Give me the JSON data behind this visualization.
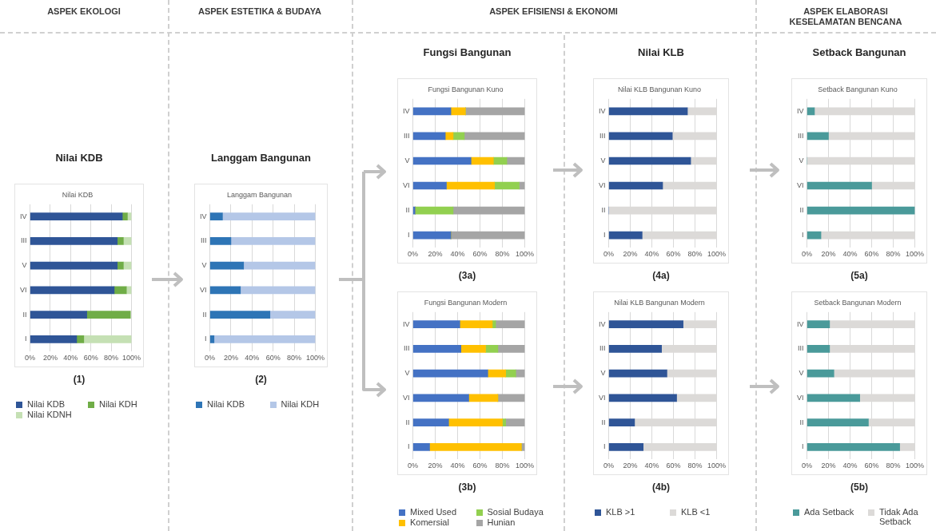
{
  "chart_data": [
    {
      "type": "other",
      "title": "ASPEK EKOLOGI"
    },
    {
      "type": "other",
      "title": "ASPEK ESTETIKA & BUDAYA"
    },
    {
      "type": "other",
      "title": "ASPEK EFISIENSI & EKONOMI"
    },
    {
      "type": "other",
      "title": "ASPEK ELABORASI KESELAMATAN BENCANA"
    },
    {
      "type": "bar",
      "title": "Nilai KDB",
      "subtitle": "Nilai KDB",
      "annotations": [
        "(1)"
      ],
      "orientation": "horizontal",
      "stacked": true,
      "categories": [
        "IV",
        "III",
        "V",
        "VI",
        "II",
        "I"
      ],
      "xlim": [
        0,
        100
      ],
      "xticks": [
        {
          "value": 0,
          "label": "0%"
        },
        {
          "value": 20,
          "label": "20%"
        },
        {
          "value": 40,
          "label": "40%"
        },
        {
          "value": 60,
          "label": "60%"
        },
        {
          "value": 80,
          "label": "80%"
        },
        {
          "value": 100,
          "label": "100%"
        }
      ],
      "grid": "x",
      "legend": "bottom",
      "series": [
        {
          "name": "Nilai KDB",
          "color": "#2f5597",
          "values": [
            91,
            86,
            86,
            83,
            56,
            46
          ]
        },
        {
          "name": "Nilai KDH",
          "color": "#70ad47",
          "values": [
            5,
            6,
            6,
            12,
            43,
            7
          ]
        },
        {
          "name": "Nilai KDNH",
          "color": "#c5e0b4",
          "values": [
            4,
            8,
            8,
            5,
            null,
            47
          ]
        }
      ]
    },
    {
      "type": "bar",
      "title": "Langgam Bangunan",
      "subtitle": "Langgam Bangunan",
      "annotations": [
        "(2)"
      ],
      "orientation": "horizontal",
      "stacked": true,
      "categories": [
        "IV",
        "III",
        "V",
        "VI",
        "II",
        "I"
      ],
      "xlim": [
        0,
        100
      ],
      "xticks": [
        {
          "value": 0,
          "label": "0%"
        },
        {
          "value": 20,
          "label": "20%"
        },
        {
          "value": 40,
          "label": "40%"
        },
        {
          "value": 60,
          "label": "60%"
        },
        {
          "value": 80,
          "label": "80%"
        },
        {
          "value": 100,
          "label": "100%"
        }
      ],
      "grid": "x",
      "legend": "bottom",
      "series": [
        {
          "name": "Nilai KDB",
          "color": "#2e75b6",
          "values": [
            12,
            20,
            32,
            29,
            57,
            4
          ]
        },
        {
          "name": "Nilai KDH",
          "color": "#b4c7e7",
          "values": [
            88,
            80,
            68,
            71,
            43,
            96
          ]
        }
      ]
    },
    {
      "type": "bar",
      "title": "Fungsi Bangunan Kuno",
      "subtitle": "Fungsi Bangunan",
      "annotations": [
        "(3a)"
      ],
      "orientation": "horizontal",
      "stacked": true,
      "categories": [
        "IV",
        "III",
        "V",
        "VI",
        "II",
        "I"
      ],
      "xlim": [
        0,
        100
      ],
      "xticks": [
        {
          "value": 0,
          "label": "0%"
        },
        {
          "value": 20,
          "label": "20%"
        },
        {
          "value": 40,
          "label": "40%"
        },
        {
          "value": 60,
          "label": "60%"
        },
        {
          "value": 80,
          "label": "80%"
        },
        {
          "value": 100,
          "label": "100%"
        }
      ],
      "grid": "x",
      "series": [
        {
          "color": "#4472c4",
          "values": [
            34,
            29,
            52,
            30,
            2,
            34
          ]
        },
        {
          "color": "#ffc000",
          "values": [
            13,
            7,
            20,
            43,
            0,
            0
          ]
        },
        {
          "color": "#92d050",
          "values": [
            0,
            10,
            12,
            22,
            34,
            0
          ]
        },
        {
          "color": "#a5a5a5",
          "values": [
            53,
            54,
            16,
            5,
            64,
            66
          ]
        }
      ]
    },
    {
      "type": "bar",
      "title": "Fungsi Bangunan Modern",
      "annotations": [
        "(3b)"
      ],
      "orientation": "horizontal",
      "stacked": true,
      "categories": [
        "IV",
        "III",
        "V",
        "VI",
        "II",
        "I"
      ],
      "xlim": [
        0,
        100
      ],
      "xticks": [
        {
          "value": 0,
          "label": "0%"
        },
        {
          "value": 20,
          "label": "20%"
        },
        {
          "value": 40,
          "label": "40%"
        },
        {
          "value": 60,
          "label": "60%"
        },
        {
          "value": 80,
          "label": "80%"
        },
        {
          "value": 100,
          "label": "100%"
        }
      ],
      "grid": "x",
      "legend": "bottom",
      "series": [
        {
          "name": "Mixed Used",
          "color": "#4472c4",
          "values": [
            42,
            43,
            67,
            50,
            32,
            15
          ]
        },
        {
          "name": "Komersial",
          "color": "#ffc000",
          "values": [
            29,
            22,
            16,
            26,
            48,
            82
          ]
        },
        {
          "name": "Sosial Budaya",
          "color": "#92d050",
          "values": [
            3,
            11,
            9,
            0,
            3,
            0
          ]
        },
        {
          "name": "Hunian",
          "color": "#a5a5a5",
          "values": [
            26,
            24,
            8,
            24,
            17,
            3
          ]
        }
      ]
    },
    {
      "type": "bar",
      "title": "Nilai KLB Bangunan Kuno",
      "subtitle": "Nilai KLB",
      "annotations": [
        "(4a)"
      ],
      "orientation": "horizontal",
      "stacked": true,
      "categories": [
        "IV",
        "III",
        "V",
        "VI",
        "II",
        "I"
      ],
      "xlim": [
        0,
        100
      ],
      "xticks": [
        {
          "value": 0,
          "label": "0%"
        },
        {
          "value": 20,
          "label": "20%"
        },
        {
          "value": 40,
          "label": "40%"
        },
        {
          "value": 60,
          "label": "60%"
        },
        {
          "value": 80,
          "label": "80%"
        },
        {
          "value": 100,
          "label": "100%"
        }
      ],
      "grid": "x",
      "series": [
        {
          "color": "#2f5597",
          "values": [
            73,
            59,
            76,
            50,
            0,
            31
          ]
        },
        {
          "color": "#dcdad8",
          "values": [
            27,
            41,
            24,
            50,
            100,
            69
          ]
        }
      ]
    },
    {
      "type": "bar",
      "title": "Nilai KLB Bangunan Modern",
      "annotations": [
        "(4b)"
      ],
      "orientation": "horizontal",
      "stacked": true,
      "categories": [
        "IV",
        "III",
        "V",
        "VI",
        "II",
        "I"
      ],
      "xlim": [
        0,
        100
      ],
      "xticks": [
        {
          "value": 0,
          "label": "0%"
        },
        {
          "value": 20,
          "label": "20%"
        },
        {
          "value": 40,
          "label": "40%"
        },
        {
          "value": 60,
          "label": "60%"
        },
        {
          "value": 80,
          "label": "80%"
        },
        {
          "value": 100,
          "label": "100%"
        }
      ],
      "grid": "x",
      "legend": "bottom",
      "series": [
        {
          "name": "KLB >1",
          "color": "#2f5597",
          "values": [
            69,
            49,
            54,
            63,
            24,
            32
          ]
        },
        {
          "name": "KLB <1",
          "color": "#dcdad8",
          "values": [
            31,
            51,
            46,
            37,
            76,
            68
          ]
        }
      ]
    },
    {
      "type": "bar",
      "title": "Setback Bangunan Kuno",
      "subtitle": "Setback Bangunan",
      "annotations": [
        "(5a)"
      ],
      "orientation": "horizontal",
      "stacked": true,
      "categories": [
        "IV",
        "III",
        "V",
        "VI",
        "II",
        "I"
      ],
      "xlim": [
        0,
        100
      ],
      "xticks": [
        {
          "value": 0,
          "label": "0%"
        },
        {
          "value": 20,
          "label": "20%"
        },
        {
          "value": 40,
          "label": "40%"
        },
        {
          "value": 60,
          "label": "60%"
        },
        {
          "value": 80,
          "label": "80%"
        },
        {
          "value": 100,
          "label": "100%"
        }
      ],
      "grid": "x",
      "series": [
        {
          "color": "#4a9a9a",
          "values": [
            7,
            20,
            0,
            60,
            100,
            13
          ]
        },
        {
          "color": "#dcdad8",
          "values": [
            93,
            80,
            100,
            40,
            0,
            87
          ]
        }
      ]
    },
    {
      "type": "bar",
      "title": "Setback Bangunan Modern",
      "annotations": [
        "(5b)"
      ],
      "orientation": "horizontal",
      "stacked": true,
      "categories": [
        "IV",
        "III",
        "V",
        "VI",
        "II",
        "I"
      ],
      "xlim": [
        0,
        100
      ],
      "xticks": [
        {
          "value": 0,
          "label": "0%"
        },
        {
          "value": 20,
          "label": "20%"
        },
        {
          "value": 40,
          "label": "40%"
        },
        {
          "value": 60,
          "label": "60%"
        },
        {
          "value": 80,
          "label": "80%"
        },
        {
          "value": 100,
          "label": "100%"
        }
      ],
      "grid": "x",
      "legend": "bottom",
      "series": [
        {
          "name": "Ada Setback",
          "color": "#4a9a9a",
          "values": [
            21,
            21,
            25,
            49,
            57,
            86
          ]
        },
        {
          "name": "Tidak Ada Setback",
          "color": "#dcdad8",
          "values": [
            79,
            79,
            75,
            51,
            43,
            14
          ]
        }
      ]
    }
  ]
}
